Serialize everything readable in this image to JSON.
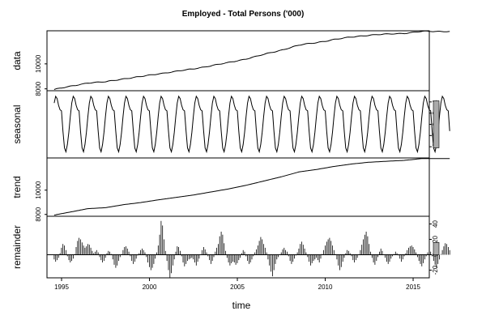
{
  "chart_data": {
    "type": "line",
    "title": "Employed - Total Persons ('000)",
    "xlabel": "time",
    "x_ticks": [
      "1995",
      "2000",
      "2005",
      "2010",
      "2015"
    ],
    "x_range": [
      1994.17,
      1915.92
    ],
    "start": 1994.58,
    "frequency": 12,
    "panels": [
      {
        "name": "data",
        "ylabel": "data",
        "ylim": [
          7850,
          12650
        ],
        "yticks": [
          "8000",
          "10000"
        ],
        "knots": [
          [
            1994.58,
            7950
          ],
          [
            1995.5,
            8200
          ],
          [
            1996.5,
            8480
          ],
          [
            1997.5,
            8560
          ],
          [
            1998.5,
            8800
          ],
          [
            1999.5,
            8980
          ],
          [
            2000.5,
            9200
          ],
          [
            2001.5,
            9400
          ],
          [
            2002.5,
            9600
          ],
          [
            2003.5,
            9850
          ],
          [
            2004.5,
            10100
          ],
          [
            2005.5,
            10400
          ],
          [
            2006.5,
            10750
          ],
          [
            2007.5,
            11100
          ],
          [
            2008.5,
            11500
          ],
          [
            2009.5,
            11700
          ],
          [
            2010.5,
            11950
          ],
          [
            2011.5,
            12150
          ],
          [
            2012.5,
            12300
          ],
          [
            2013.5,
            12380
          ],
          [
            2014.5,
            12450
          ],
          [
            2015.5,
            12600
          ]
        ],
        "wiggle": 25
      },
      {
        "name": "seasonal",
        "ylabel": "seasonal",
        "ylim": [
          -6,
          6
        ],
        "yticks": [
          "-4",
          "-2",
          "0",
          "2",
          "4"
        ],
        "amplitude": 5,
        "scale_bar": [
          -4.2,
          4.2
        ]
      },
      {
        "name": "trend",
        "ylabel": "trend",
        "ylim": [
          7850,
          12650
        ],
        "yticks": [
          "8000",
          "10000"
        ],
        "knots": [
          [
            1994.58,
            7950
          ],
          [
            1995.5,
            8200
          ],
          [
            1996.5,
            8480
          ],
          [
            1997.5,
            8560
          ],
          [
            1998.5,
            8800
          ],
          [
            1999.5,
            8980
          ],
          [
            2000.5,
            9200
          ],
          [
            2001.5,
            9400
          ],
          [
            2002.5,
            9600
          ],
          [
            2003.5,
            9850
          ],
          [
            2004.5,
            10100
          ],
          [
            2005.5,
            10400
          ],
          [
            2006.5,
            10750
          ],
          [
            2007.5,
            11100
          ],
          [
            2008.5,
            11500
          ],
          [
            2009.5,
            11700
          ],
          [
            2010.5,
            11950
          ],
          [
            2011.5,
            12150
          ],
          [
            2012.5,
            12300
          ],
          [
            2013.5,
            12380
          ],
          [
            2014.5,
            12450
          ],
          [
            2015.5,
            12600
          ]
        ]
      },
      {
        "name": "remainder",
        "ylabel": "remainder",
        "ylim": [
          -30,
          50
        ],
        "yticks": [
          "-20",
          "0",
          "20",
          "40"
        ],
        "scale_bar": [
          0,
          16
        ],
        "values": [
          -6,
          -9,
          -7,
          -4,
          2,
          9,
          14,
          12,
          6,
          -2,
          -7,
          -10,
          -8,
          -5,
          1,
          10,
          18,
          22,
          20,
          16,
          12,
          9,
          11,
          14,
          13,
          9,
          5,
          2,
          4,
          6,
          3,
          -3,
          -7,
          -10,
          -8,
          -4,
          2,
          5,
          4,
          1,
          -6,
          -13,
          -17,
          -14,
          -8,
          -3,
          1,
          6,
          10,
          11,
          8,
          4,
          -2,
          -8,
          -12,
          -9,
          -5,
          -1,
          2,
          6,
          8,
          6,
          3,
          -3,
          -10,
          -16,
          -20,
          -17,
          -12,
          -5,
          3,
          12,
          26,
          44,
          38,
          20,
          5,
          -8,
          -20,
          -30,
          -24,
          -14,
          -6,
          4,
          11,
          10,
          5,
          -2,
          -10,
          -15,
          -12,
          -8,
          -6,
          -5,
          -4,
          -6,
          -10,
          -14,
          -9,
          -5,
          0,
          6,
          10,
          7,
          3,
          -2,
          -7,
          -12,
          -8,
          -3,
          4,
          9,
          14,
          24,
          30,
          26,
          15,
          5,
          -4,
          -10,
          -14,
          -11,
          -9,
          -10,
          -13,
          -11,
          -7,
          -4,
          2,
          6,
          4,
          -2,
          -8,
          -12,
          -10,
          -6,
          -2,
          3,
          7,
          12,
          18,
          23,
          20,
          14,
          9,
          3,
          -6,
          -14,
          -22,
          -28,
          -20,
          -12,
          -6,
          -3,
          0,
          3,
          7,
          9,
          6,
          4,
          -2,
          -8,
          -12,
          -9,
          -5,
          -1,
          3,
          8,
          14,
          17,
          13,
          8,
          3,
          -3,
          -9,
          -14,
          -11,
          -8,
          -6,
          -4,
          -7,
          -10,
          -5,
          1,
          6,
          12,
          17,
          20,
          22,
          18,
          12,
          6,
          1,
          -6,
          -14,
          -20,
          -16,
          -9,
          -4,
          2,
          6,
          5,
          2,
          -2,
          -7,
          -10,
          -7,
          -4,
          0,
          6,
          13,
          20,
          26,
          30,
          24,
          14,
          4,
          -4,
          -10,
          -13,
          -8,
          -3,
          4,
          8,
          5,
          0,
          -4,
          -9,
          -12,
          -9,
          -5,
          -2,
          1,
          4,
          2,
          -1,
          -5,
          -9,
          -6,
          -2,
          2,
          6,
          9,
          11,
          12,
          10,
          7,
          3,
          -3,
          -8,
          -12,
          -15,
          -11,
          -6,
          -2,
          3,
          6,
          4,
          -2,
          -8,
          -13,
          -17,
          -12,
          -6,
          1,
          6,
          11,
          15,
          14,
          10,
          6
        ]
      }
    ]
  }
}
